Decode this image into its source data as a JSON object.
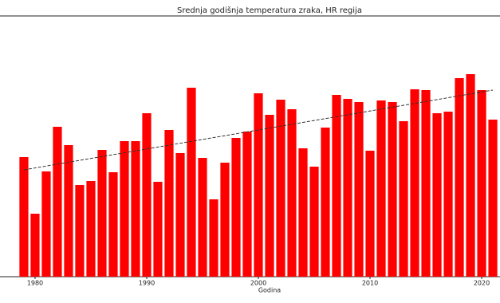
{
  "chart_data": {
    "type": "bar",
    "title": "Srednja godišnja temperatura zraka, HR regija",
    "xlabel": "Godina",
    "x": [
      1979,
      1980,
      1981,
      1982,
      1983,
      1984,
      1985,
      1986,
      1987,
      1988,
      1989,
      1990,
      1991,
      1992,
      1993,
      1994,
      1995,
      1996,
      1997,
      1998,
      1999,
      2000,
      2001,
      2002,
      2003,
      2004,
      2005,
      2006,
      2007,
      2008,
      2009,
      2010,
      2011,
      2012,
      2013,
      2014,
      2015,
      2016,
      2017,
      2018,
      2019,
      2020,
      2021
    ],
    "values": [
      150,
      79,
      132,
      188,
      165,
      115,
      120,
      159,
      131,
      170,
      170,
      205,
      119,
      184,
      155,
      237,
      149,
      97,
      143,
      174,
      182,
      230,
      203,
      222,
      210,
      161,
      138,
      187,
      228,
      223,
      219,
      158,
      221,
      219,
      195,
      235,
      234,
      205,
      207,
      249,
      254,
      234,
      197
    ],
    "color": "#ff0000",
    "trend": {
      "x": [
        1979,
        2021
      ],
      "values": [
        134,
        234
      ],
      "color": "#333333"
    },
    "xlim": [
      1976.86,
      2021.64
    ],
    "xticks": [
      1980,
      1990,
      2000,
      2010,
      2020
    ],
    "ylim": [
      0,
      327
    ]
  }
}
